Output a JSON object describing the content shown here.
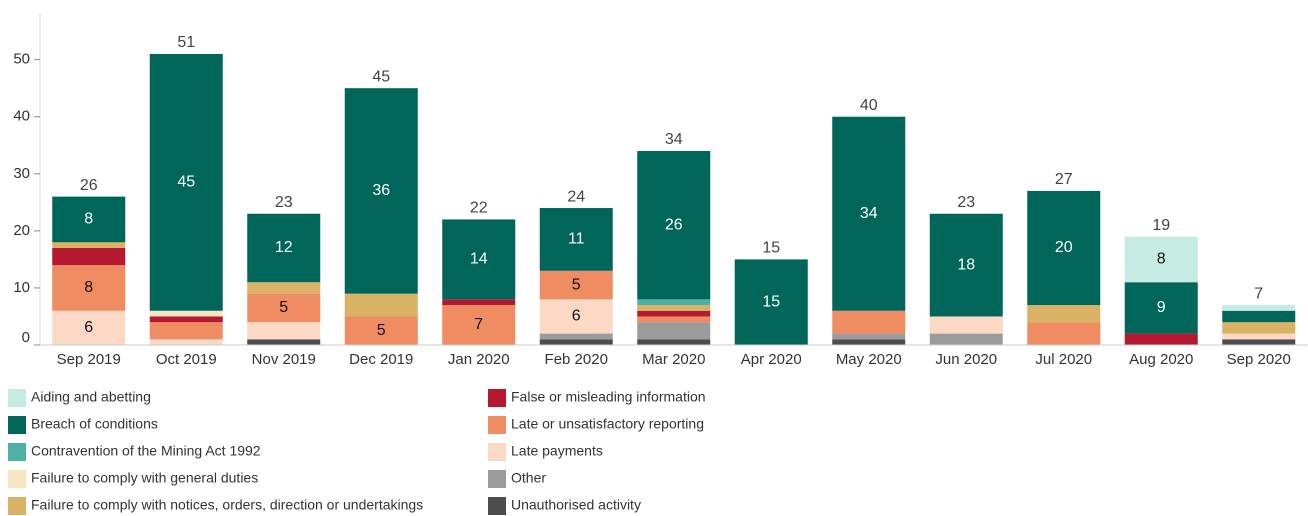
{
  "chart_data": {
    "type": "stacked-bar",
    "categories": [
      "Sep 2019",
      "Oct 2019",
      "Nov 2019",
      "Dec 2019",
      "Jan 2020",
      "Feb 2020",
      "Mar 2020",
      "Apr 2020",
      "May 2020",
      "Jun 2020",
      "Jul 2020",
      "Aug 2020",
      "Sep 2020"
    ],
    "series": [
      {
        "name": "Unauthorised activity",
        "color": "#4d4d4d",
        "values": [
          0,
          0,
          1,
          0,
          0,
          1,
          1,
          0,
          1,
          0,
          0,
          0,
          1
        ]
      },
      {
        "name": "Other",
        "color": "#9b9b9b",
        "values": [
          0,
          0,
          0,
          0,
          0,
          1,
          3,
          0,
          1,
          2,
          0,
          0,
          0
        ]
      },
      {
        "name": "Late payments",
        "color": "#fbd9c5",
        "values": [
          6,
          1,
          3,
          0,
          0,
          6,
          0,
          0,
          0,
          3,
          0,
          0,
          1
        ]
      },
      {
        "name": "Late or unsatisfactory reporting",
        "color": "#ef8c62",
        "values": [
          8,
          3,
          5,
          5,
          7,
          5,
          1,
          0,
          4,
          0,
          4,
          0,
          0
        ]
      },
      {
        "name": "False or misleading information",
        "color": "#b5192f",
        "values": [
          3,
          1,
          0,
          0,
          1,
          0,
          1,
          0,
          0,
          0,
          0,
          2,
          0
        ]
      },
      {
        "name": "Failure to comply with notices, orders, direction or undertakings",
        "color": "#d9b265",
        "values": [
          1,
          0,
          2,
          4,
          0,
          0,
          1,
          0,
          0,
          0,
          3,
          0,
          2
        ]
      },
      {
        "name": "Failure to comply with general duties",
        "color": "#f7e6c2",
        "values": [
          0,
          1,
          0,
          0,
          0,
          0,
          0,
          0,
          0,
          0,
          0,
          0,
          0
        ]
      },
      {
        "name": "Contravention of the Mining Act 1992",
        "color": "#4fb0a6",
        "values": [
          0,
          0,
          0,
          0,
          0,
          0,
          1,
          0,
          0,
          0,
          0,
          0,
          0
        ]
      },
      {
        "name": "Breach of conditions",
        "color": "#00665a",
        "values": [
          8,
          45,
          12,
          36,
          14,
          11,
          26,
          15,
          34,
          18,
          20,
          9,
          2
        ]
      },
      {
        "name": "Aiding and abetting",
        "color": "#c5ebe3",
        "values": [
          0,
          0,
          0,
          0,
          0,
          0,
          0,
          0,
          0,
          0,
          0,
          8,
          1
        ]
      }
    ],
    "totals": [
      26,
      51,
      23,
      45,
      22,
      24,
      34,
      15,
      40,
      23,
      27,
      19,
      7
    ],
    "ylim": [
      0,
      58
    ],
    "yticks": [
      0,
      10,
      20,
      30,
      40,
      50
    ],
    "grid": false
  }
}
